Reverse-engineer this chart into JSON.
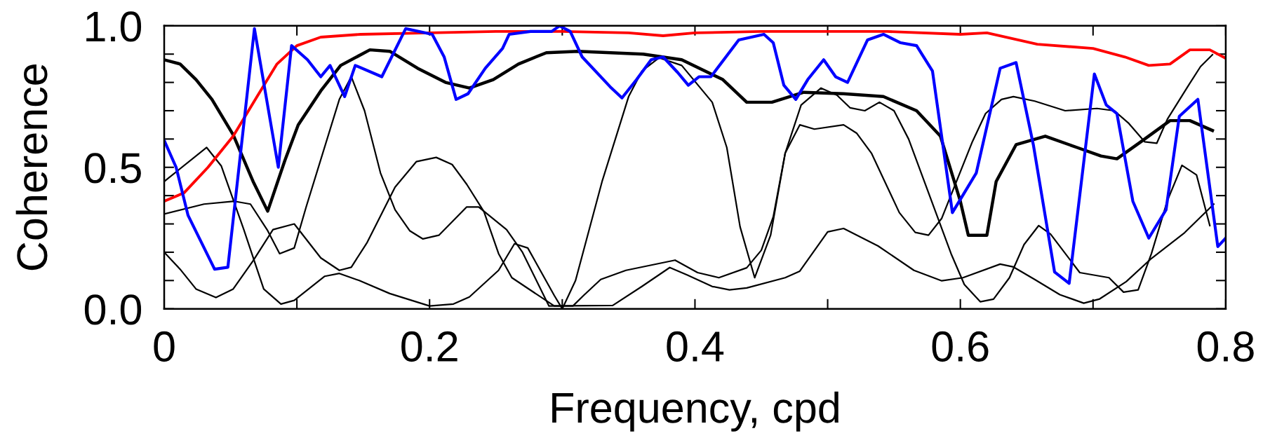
{
  "chart_data": {
    "type": "line",
    "xlabel": "Frequency, cpd",
    "ylabel": "Coherence",
    "xlim": [
      0,
      0.8
    ],
    "ylim": [
      0,
      1.0
    ],
    "xticks": [
      0,
      {
        "value": 0.1,
        "label": null
      },
      {
        "value": 0.2,
        "label": "0.2"
      },
      {
        "value": 0.3,
        "label": null
      },
      {
        "value": 0.4,
        "label": "0.4"
      },
      {
        "value": 0.5,
        "label": null
      },
      {
        "value": 0.6,
        "label": "0.6"
      },
      {
        "value": 0.7,
        "label": null
      },
      {
        "value": 0.8,
        "label": "0.8"
      }
    ],
    "yticks": [
      {
        "value": 0.0,
        "label": "0.0"
      },
      {
        "value": 0.1,
        "label": null
      },
      {
        "value": 0.2,
        "label": null
      },
      {
        "value": 0.3,
        "label": null
      },
      {
        "value": 0.4,
        "label": null
      },
      {
        "value": 0.5,
        "label": "0.5"
      },
      {
        "value": 0.6,
        "label": null
      },
      {
        "value": 0.7,
        "label": null
      },
      {
        "value": 0.8,
        "label": null
      },
      {
        "value": 0.9,
        "label": null
      },
      {
        "value": 1.0,
        "label": "1.0"
      }
    ],
    "grid": false,
    "marker": "none",
    "line_style": "solid",
    "series": [
      {
        "color": "#000000",
        "x": [
          0,
          0.012,
          0.024,
          0.039,
          0.052,
          0.067,
          0.082,
          0.098,
          0.118,
          0.132,
          0.141,
          0.153,
          0.174,
          0.19,
          0.205,
          0.217,
          0.228,
          0.241,
          0.252,
          0.262,
          0.278,
          0.294,
          0.308,
          0.316,
          0.329,
          0.348,
          0.385,
          0.402,
          0.418,
          0.439,
          0.45,
          0.459,
          0.468,
          0.48,
          0.495,
          0.507,
          0.517,
          0.528,
          0.539,
          0.55,
          0.561,
          0.593,
          0.603,
          0.615,
          0.625,
          0.637,
          0.648,
          0.659,
          0.668,
          0.69,
          0.712,
          0.723,
          0.734,
          0.744,
          0.756,
          0.767,
          0.778,
          0.788
        ],
        "values": [
          0.2,
          0.14,
          0.07,
          0.04,
          0.07,
          0.17,
          0.28,
          0.3,
          0.18,
          0.136,
          0.147,
          0.235,
          0.43,
          0.52,
          0.535,
          0.51,
          0.44,
          0.343,
          0.195,
          0.11,
          0.06,
          0.01,
          0.01,
          0.047,
          0.104,
          0.136,
          0.172,
          0.128,
          0.11,
          0.145,
          0.207,
          0.325,
          0.55,
          0.72,
          0.78,
          0.755,
          0.71,
          0.7,
          0.73,
          0.7,
          0.6,
          0.195,
          0.086,
          0.025,
          0.034,
          0.11,
          0.227,
          0.294,
          0.264,
          0.128,
          0.11,
          0.059,
          0.067,
          0.195,
          0.382,
          0.507,
          0.473,
          0.294
        ]
      },
      {
        "color": "#000000",
        "x": [
          0,
          0.032,
          0.043,
          0.06,
          0.075,
          0.088,
          0.098,
          0.121,
          0.132,
          0.147,
          0.17,
          0.2,
          0.218,
          0.23,
          0.252,
          0.264,
          0.274,
          0.294,
          0.3,
          0.31,
          0.33,
          0.35,
          0.36,
          0.373,
          0.39,
          0.413,
          0.424,
          0.434,
          0.445,
          0.457,
          0.468,
          0.479,
          0.49,
          0.512,
          0.522,
          0.533,
          0.554,
          0.566,
          0.576,
          0.586,
          0.609,
          0.619,
          0.631,
          0.64,
          0.656,
          0.679,
          0.703,
          0.716,
          0.727,
          0.739,
          0.748,
          0.756,
          0.772,
          0.781,
          0.79
        ],
        "values": [
          0.45,
          0.57,
          0.505,
          0.28,
          0.07,
          0.017,
          0.03,
          0.115,
          0.125,
          0.1,
          0.054,
          0.01,
          0.017,
          0.042,
          0.136,
          0.23,
          0.215,
          0.047,
          0.0,
          0.1,
          0.45,
          0.75,
          0.84,
          0.887,
          0.86,
          0.73,
          0.57,
          0.29,
          0.11,
          0.26,
          0.55,
          0.65,
          0.635,
          0.65,
          0.62,
          0.55,
          0.34,
          0.27,
          0.26,
          0.32,
          0.59,
          0.69,
          0.74,
          0.75,
          0.734,
          0.7,
          0.708,
          0.7,
          0.655,
          0.59,
          0.585,
          0.67,
          0.79,
          0.856,
          0.898
        ]
      },
      {
        "color": "#000000",
        "x": [
          0,
          0.03,
          0.053,
          0.065,
          0.078,
          0.087,
          0.098,
          0.107,
          0.132,
          0.141,
          0.151,
          0.163,
          0.174,
          0.185,
          0.195,
          0.207,
          0.228,
          0.237,
          0.258,
          0.27,
          0.29,
          0.338,
          0.36,
          0.381,
          0.394,
          0.413,
          0.426,
          0.439,
          0.468,
          0.479,
          0.5,
          0.512,
          0.538,
          0.565,
          0.586,
          0.602,
          0.63,
          0.64,
          0.656,
          0.675,
          0.693,
          0.705,
          0.725,
          0.744,
          0.769,
          0.791
        ],
        "values": [
          0.335,
          0.37,
          0.38,
          0.37,
          0.276,
          0.195,
          0.215,
          0.36,
          0.74,
          0.82,
          0.7,
          0.48,
          0.35,
          0.276,
          0.247,
          0.26,
          0.36,
          0.36,
          0.28,
          0.2,
          0.01,
          0.012,
          0.079,
          0.146,
          0.12,
          0.079,
          0.067,
          0.074,
          0.11,
          0.133,
          0.272,
          0.284,
          0.222,
          0.136,
          0.099,
          0.11,
          0.158,
          0.148,
          0.104,
          0.05,
          0.02,
          0.035,
          0.096,
          0.178,
          0.269,
          0.37
        ]
      },
      {
        "color": "#000000",
        "x": [
          0,
          0.012,
          0.024,
          0.036,
          0.052,
          0.067,
          0.078,
          0.091,
          0.101,
          0.118,
          0.133,
          0.155,
          0.17,
          0.191,
          0.212,
          0.23,
          0.248,
          0.267,
          0.288,
          0.312,
          0.361,
          0.39,
          0.421,
          0.439,
          0.458,
          0.482,
          0.512,
          0.542,
          0.567,
          0.585,
          0.6,
          0.606,
          0.62,
          0.627,
          0.642,
          0.664,
          0.688,
          0.706,
          0.718,
          0.736,
          0.758,
          0.773,
          0.79
        ],
        "values": [
          0.88,
          0.865,
          0.81,
          0.74,
          0.615,
          0.45,
          0.345,
          0.525,
          0.65,
          0.77,
          0.86,
          0.915,
          0.91,
          0.85,
          0.8,
          0.78,
          0.81,
          0.865,
          0.905,
          0.91,
          0.9,
          0.88,
          0.81,
          0.73,
          0.73,
          0.765,
          0.76,
          0.75,
          0.7,
          0.61,
          0.38,
          0.26,
          0.26,
          0.45,
          0.58,
          0.61,
          0.57,
          0.54,
          0.53,
          0.59,
          0.665,
          0.665,
          0.63
        ]
      },
      {
        "color": "#ff0000",
        "x": [
          0,
          0.015,
          0.033,
          0.052,
          0.07,
          0.085,
          0.1,
          0.118,
          0.148,
          0.2,
          0.25,
          0.3,
          0.35,
          0.376,
          0.4,
          0.45,
          0.5,
          0.545,
          0.6,
          0.62,
          0.658,
          0.7,
          0.724,
          0.742,
          0.758,
          0.773,
          0.788,
          0.8
        ],
        "values": [
          0.38,
          0.41,
          0.5,
          0.61,
          0.75,
          0.865,
          0.93,
          0.96,
          0.97,
          0.975,
          0.98,
          0.98,
          0.975,
          0.965,
          0.975,
          0.98,
          0.98,
          0.98,
          0.97,
          0.975,
          0.935,
          0.92,
          0.89,
          0.86,
          0.865,
          0.915,
          0.915,
          0.885
        ]
      },
      {
        "color": "#0000ff",
        "x": [
          0,
          0.009,
          0.018,
          0.038,
          0.048,
          0.068,
          0.086,
          0.096,
          0.108,
          0.118,
          0.125,
          0.136,
          0.144,
          0.164,
          0.182,
          0.202,
          0.211,
          0.22,
          0.229,
          0.242,
          0.255,
          0.26,
          0.276,
          0.292,
          0.298,
          0.306,
          0.315,
          0.336,
          0.345,
          0.356,
          0.367,
          0.376,
          0.387,
          0.395,
          0.403,
          0.412,
          0.433,
          0.452,
          0.459,
          0.467,
          0.476,
          0.485,
          0.497,
          0.506,
          0.515,
          0.53,
          0.542,
          0.555,
          0.567,
          0.579,
          0.594,
          0.603,
          0.612,
          0.63,
          0.642,
          0.655,
          0.671,
          0.682,
          0.701,
          0.71,
          0.718,
          0.73,
          0.742,
          0.755,
          0.765,
          0.779,
          0.794,
          0.8
        ],
        "values": [
          0.595,
          0.5,
          0.33,
          0.14,
          0.147,
          0.99,
          0.5,
          0.93,
          0.88,
          0.82,
          0.86,
          0.75,
          0.86,
          0.82,
          0.99,
          0.97,
          0.89,
          0.74,
          0.76,
          0.85,
          0.92,
          0.97,
          0.98,
          0.98,
          1.0,
          0.98,
          0.89,
          0.785,
          0.745,
          0.81,
          0.88,
          0.89,
          0.835,
          0.79,
          0.82,
          0.82,
          0.95,
          0.97,
          0.94,
          0.79,
          0.74,
          0.81,
          0.88,
          0.82,
          0.8,
          0.95,
          0.97,
          0.94,
          0.93,
          0.84,
          0.34,
          0.41,
          0.48,
          0.85,
          0.87,
          0.58,
          0.13,
          0.09,
          0.83,
          0.72,
          0.69,
          0.38,
          0.25,
          0.35,
          0.68,
          0.74,
          0.22,
          0.25
        ]
      }
    ]
  }
}
